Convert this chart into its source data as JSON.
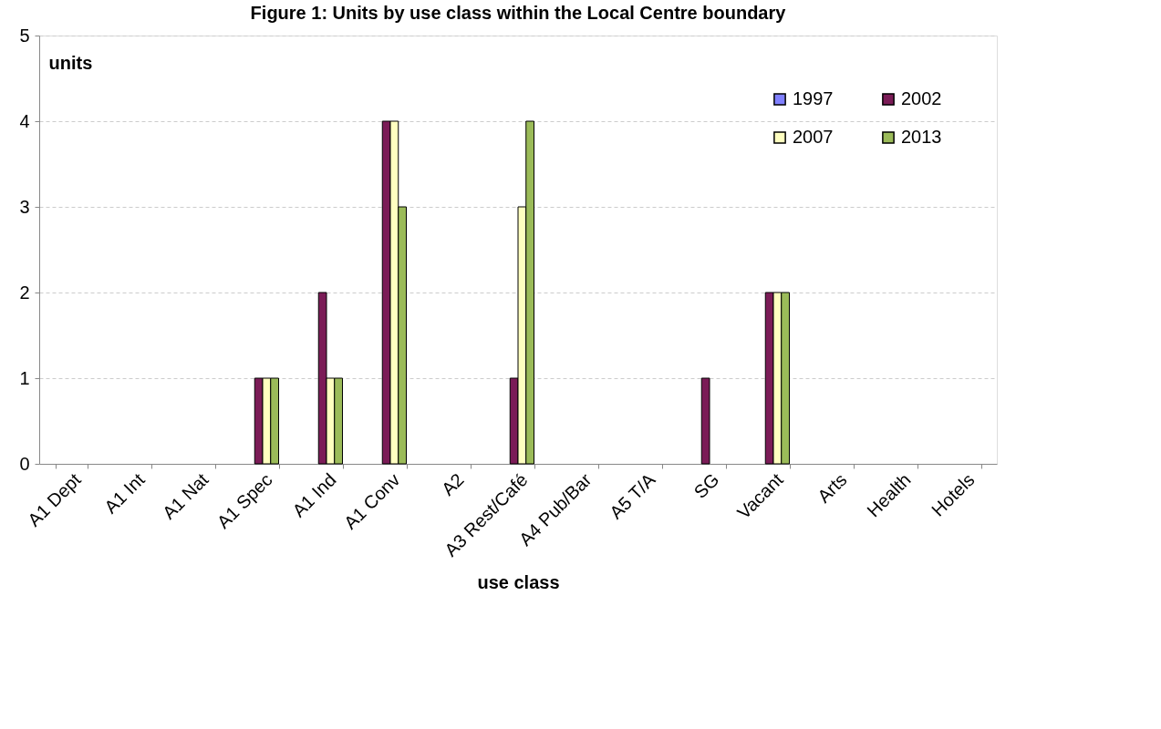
{
  "chart_data": {
    "type": "bar",
    "title": "Figure 1: Units by use class within the Local Centre boundary",
    "xlabel": "use class",
    "ylabel": "units",
    "categories": [
      "A1 Dept",
      "A1 Int",
      "A1 Nat",
      "A1 Spec",
      "A1 Ind",
      "A1 Conv",
      "A2",
      "A3 Rest/Café",
      "A4 Pub/Bar",
      "A5 T/A",
      "SG",
      "Vacant",
      "Arts",
      "Health",
      "Hotels"
    ],
    "series": [
      {
        "name": "1997",
        "color": "#8080ff",
        "values": [
          0,
          0,
          0,
          0,
          0,
          0,
          0,
          0,
          0,
          0,
          0,
          0,
          0,
          0,
          0
        ]
      },
      {
        "name": "2002",
        "color": "#7b1c57",
        "values": [
          0,
          0,
          0,
          1,
          2,
          4,
          0,
          1,
          0,
          0,
          1,
          2,
          0,
          0,
          0
        ]
      },
      {
        "name": "2007",
        "color": "#ffffc0",
        "values": [
          0,
          0,
          0,
          1,
          1,
          4,
          0,
          3,
          0,
          0,
          0,
          2,
          0,
          0,
          0
        ]
      },
      {
        "name": "2013",
        "color": "#9bbb59",
        "values": [
          0,
          0,
          0,
          1,
          1,
          3,
          0,
          4,
          0,
          0,
          0,
          2,
          0,
          0,
          0
        ]
      }
    ],
    "ylim": [
      0,
      5
    ],
    "yticks": [
      0,
      1,
      2,
      3,
      4,
      5
    ],
    "grid": "y",
    "legend": "top right"
  }
}
